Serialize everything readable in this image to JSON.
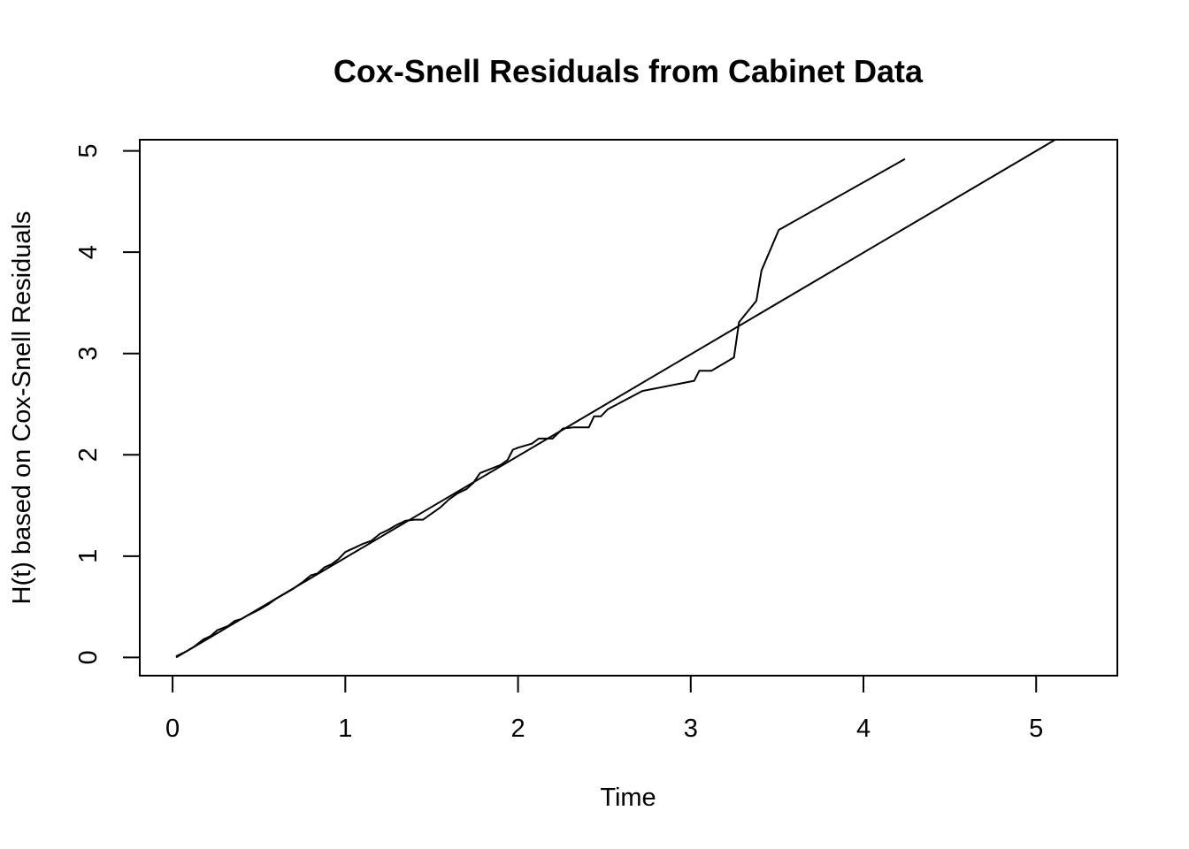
{
  "chart_data": {
    "type": "line",
    "title": "Cox-Snell Residuals from Cabinet Data",
    "xlabel": "Time",
    "ylabel": "H(t) based on Cox-Snell Residuals",
    "xlim": [
      -0.19,
      5.47
    ],
    "ylim": [
      -0.18,
      5.11
    ],
    "x_ticks": [
      0,
      1,
      2,
      3,
      4,
      5
    ],
    "y_ticks": [
      0,
      1,
      2,
      3,
      4,
      5
    ],
    "x_tick_labels": [
      "0",
      "1",
      "2",
      "3",
      "4",
      "5"
    ],
    "y_tick_labels": [
      "0",
      "1",
      "2",
      "3",
      "4",
      "5"
    ],
    "grid": false,
    "series": [
      {
        "points": [
          [
            0.02,
            0.01
          ],
          [
            0.08,
            0.06
          ],
          [
            0.12,
            0.1
          ],
          [
            0.18,
            0.18
          ],
          [
            0.22,
            0.21
          ],
          [
            0.26,
            0.27
          ],
          [
            0.32,
            0.31
          ],
          [
            0.36,
            0.36
          ],
          [
            0.4,
            0.38
          ],
          [
            0.44,
            0.42
          ],
          [
            0.5,
            0.47
          ],
          [
            0.55,
            0.52
          ],
          [
            0.6,
            0.58
          ],
          [
            0.65,
            0.63
          ],
          [
            0.7,
            0.68
          ],
          [
            0.75,
            0.74
          ],
          [
            0.8,
            0.81
          ],
          [
            0.84,
            0.83
          ],
          [
            0.88,
            0.89
          ],
          [
            0.92,
            0.92
          ],
          [
            0.96,
            0.97
          ],
          [
            1.0,
            1.04
          ],
          [
            1.05,
            1.08
          ],
          [
            1.1,
            1.12
          ],
          [
            1.15,
            1.15
          ],
          [
            1.2,
            1.22
          ],
          [
            1.25,
            1.26
          ],
          [
            1.3,
            1.31
          ],
          [
            1.35,
            1.35
          ],
          [
            1.4,
            1.36
          ],
          [
            1.45,
            1.36
          ],
          [
            1.5,
            1.42
          ],
          [
            1.55,
            1.48
          ],
          [
            1.6,
            1.56
          ],
          [
            1.65,
            1.62
          ],
          [
            1.7,
            1.66
          ],
          [
            1.74,
            1.72
          ],
          [
            1.78,
            1.82
          ],
          [
            1.84,
            1.86
          ],
          [
            1.9,
            1.9
          ],
          [
            1.94,
            1.95
          ],
          [
            1.97,
            2.05
          ],
          [
            2.0,
            2.07
          ],
          [
            2.08,
            2.11
          ],
          [
            2.12,
            2.16
          ],
          [
            2.2,
            2.16
          ],
          [
            2.26,
            2.26
          ],
          [
            2.32,
            2.27
          ],
          [
            2.41,
            2.27
          ],
          [
            2.44,
            2.38
          ],
          [
            2.48,
            2.38
          ],
          [
            2.52,
            2.45
          ],
          [
            2.62,
            2.54
          ],
          [
            2.72,
            2.63
          ],
          [
            3.02,
            2.73
          ],
          [
            3.05,
            2.83
          ],
          [
            3.12,
            2.83
          ],
          [
            3.25,
            2.96
          ],
          [
            3.28,
            3.31
          ],
          [
            3.38,
            3.52
          ],
          [
            3.41,
            3.82
          ],
          [
            3.51,
            4.22
          ],
          [
            4.24,
            4.92
          ]
        ]
      },
      {
        "points": [
          [
            0.02,
            0.0
          ],
          [
            5.11,
            5.11
          ]
        ]
      }
    ]
  }
}
